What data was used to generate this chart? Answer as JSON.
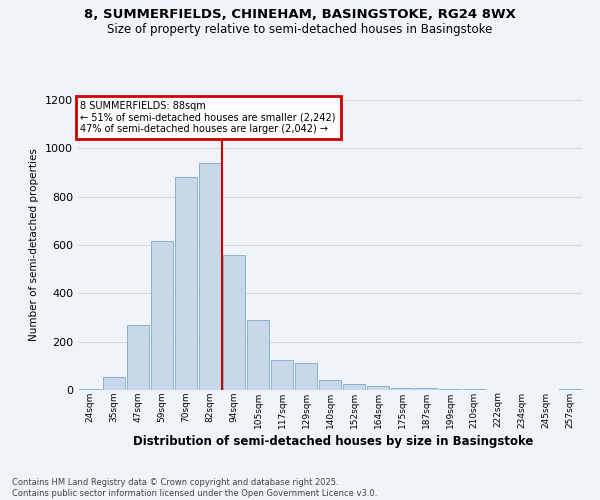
{
  "title_line1": "8, SUMMERFIELDS, CHINEHAM, BASINGSTOKE, RG24 8WX",
  "title_line2": "Size of property relative to semi-detached houses in Basingstoke",
  "xlabel": "Distribution of semi-detached houses by size in Basingstoke",
  "ylabel": "Number of semi-detached properties",
  "categories": [
    "24sqm",
    "35sqm",
    "47sqm",
    "59sqm",
    "70sqm",
    "82sqm",
    "94sqm",
    "105sqm",
    "117sqm",
    "129sqm",
    "140sqm",
    "152sqm",
    "164sqm",
    "175sqm",
    "187sqm",
    "199sqm",
    "210sqm",
    "222sqm",
    "234sqm",
    "245sqm",
    "257sqm"
  ],
  "values": [
    5,
    55,
    270,
    615,
    880,
    940,
    560,
    290,
    125,
    110,
    40,
    25,
    15,
    10,
    7,
    4,
    3,
    2,
    1,
    0,
    3
  ],
  "bar_color": "#c8d8e8",
  "bar_edge_color": "#7aaac8",
  "vline_color": "#cc0000",
  "vline_x_index": 6,
  "annotation_title": "8 SUMMERFIELDS: 88sqm",
  "annotation_line2": "← 51% of semi-detached houses are smaller (2,242)",
  "annotation_line3": "47% of semi-detached houses are larger (2,042) →",
  "annotation_box_color": "#cc0000",
  "footer": "Contains HM Land Registry data © Crown copyright and database right 2025.\nContains public sector information licensed under the Open Government Licence v3.0.",
  "ylim": [
    0,
    1200
  ],
  "yticks": [
    0,
    200,
    400,
    600,
    800,
    1000,
    1200
  ],
  "background_color": "#f0f4f8",
  "grid_color": "#d0d8e0"
}
